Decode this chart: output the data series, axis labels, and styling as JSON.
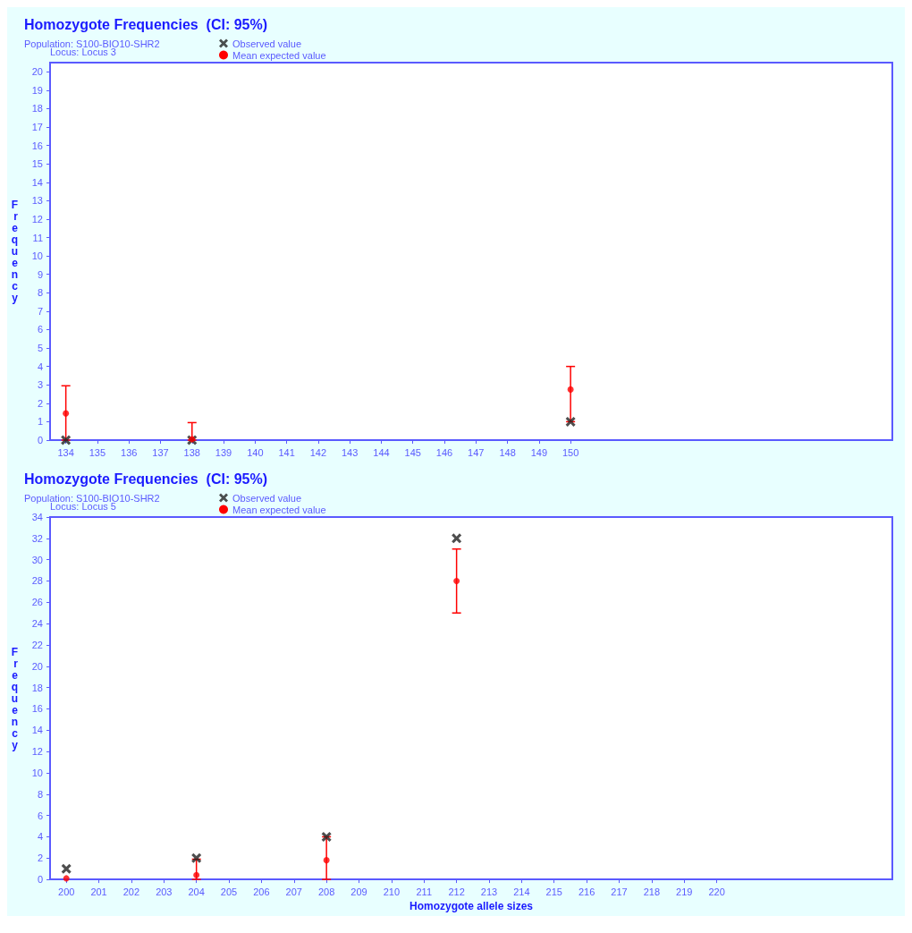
{
  "chart_data": [
    {
      "type": "scatter",
      "title": "Homozygote Frequencies  (CI: 95%)",
      "subtitle": "Population: S100-BIO10-SHR2",
      "annotations": [
        "Locus: Locus 3"
      ],
      "ylabel": "Frequency",
      "x": [
        134,
        138,
        150
      ],
      "xlim": [
        133.5,
        160.2
      ],
      "xticks": [
        134,
        135,
        136,
        137,
        138,
        139,
        140,
        141,
        142,
        143,
        144,
        145,
        146,
        147,
        148,
        149,
        150
      ],
      "ylim": [
        0,
        20.5
      ],
      "yticks": [
        0,
        1,
        2,
        3,
        4,
        5,
        6,
        7,
        8,
        9,
        10,
        11,
        12,
        13,
        14,
        15,
        16,
        17,
        18,
        19,
        20
      ],
      "grid": false,
      "legend": "top left",
      "series": [
        {
          "name": "Observed value",
          "color": "#222222",
          "marker": "cross",
          "values": [
            0,
            0,
            1
          ]
        },
        {
          "name": "Mean expected value",
          "color": "#ff0000",
          "marker": "circle",
          "values": [
            1.45,
            0.05,
            2.75
          ],
          "errors": [
            [
              0,
              2.95
            ],
            [
              0,
              0.95
            ],
            [
              1,
              4
            ]
          ]
        }
      ]
    },
    {
      "type": "scatter",
      "title": "Homozygote Frequencies  (CI: 95%)",
      "subtitle": "Population: S100-BIO10-SHR2",
      "annotations": [
        "Locus: Locus 5"
      ],
      "ylabel": "Frequency",
      "xlabel": "Homozygote allele sizes",
      "x": [
        200,
        204,
        208,
        212
      ],
      "xlim": [
        199.5,
        225.4
      ],
      "xticks": [
        200,
        201,
        202,
        203,
        204,
        205,
        206,
        207,
        208,
        209,
        210,
        211,
        212,
        213,
        214,
        215,
        216,
        217,
        218,
        219,
        220
      ],
      "ylim": [
        0,
        34
      ],
      "yticks": [
        0,
        2,
        4,
        6,
        8,
        10,
        12,
        14,
        16,
        18,
        20,
        22,
        24,
        26,
        28,
        30,
        32,
        34
      ],
      "grid": false,
      "legend": "top left",
      "series": [
        {
          "name": "Observed value",
          "color": "#222222",
          "marker": "cross",
          "values": [
            1,
            2,
            4,
            32
          ]
        },
        {
          "name": "Mean expected value",
          "color": "#ff0000",
          "marker": "circle",
          "values": [
            0.1,
            0.4,
            1.8,
            28
          ],
          "errors": [
            null,
            [
              0,
              1.9
            ],
            [
              0,
              4
            ],
            [
              25,
              31
            ]
          ]
        }
      ]
    }
  ]
}
